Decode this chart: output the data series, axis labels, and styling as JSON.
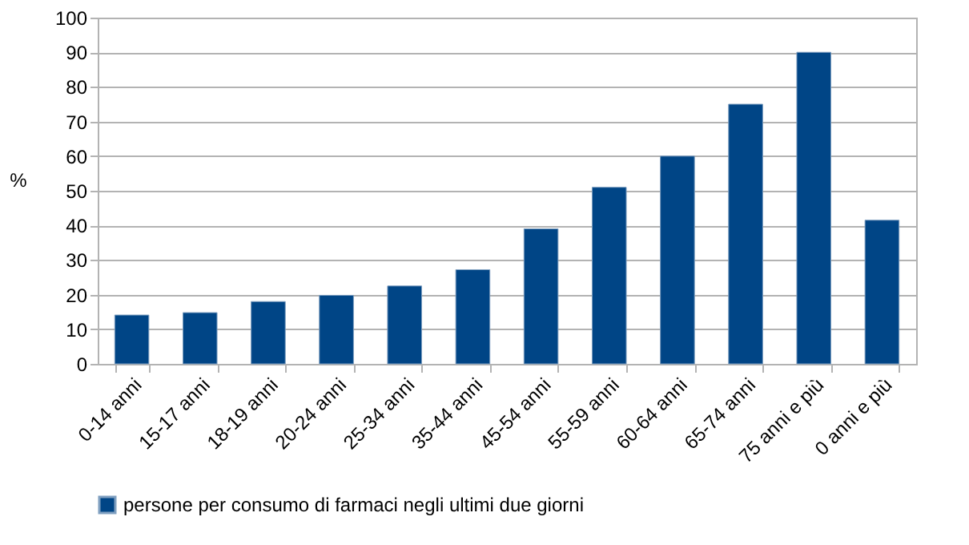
{
  "chart_data": {
    "type": "bar",
    "ylabel": "%",
    "categories": [
      "0-14 anni",
      "15-17 anni",
      "18-19 anni",
      "20-24 anni",
      "25-34 anni",
      "35-44 anni",
      "45-54 anni",
      "55-59 anni",
      "60-64 anni",
      "65-74 anni",
      "75 anni e più",
      "0 anni e più"
    ],
    "series": [
      {
        "name": "persone per consumo di farmaci negli ultimi due giorni",
        "color": "#004586",
        "values": [
          14.1,
          14.8,
          18,
          19.8,
          22.5,
          27.2,
          39,
          51,
          60,
          75,
          90,
          41.5
        ]
      }
    ],
    "ylim": [
      0,
      100
    ],
    "yticks": [
      0,
      10,
      20,
      30,
      40,
      50,
      60,
      70,
      80,
      90,
      100
    ],
    "grid": "y",
    "legend": "bottom"
  }
}
